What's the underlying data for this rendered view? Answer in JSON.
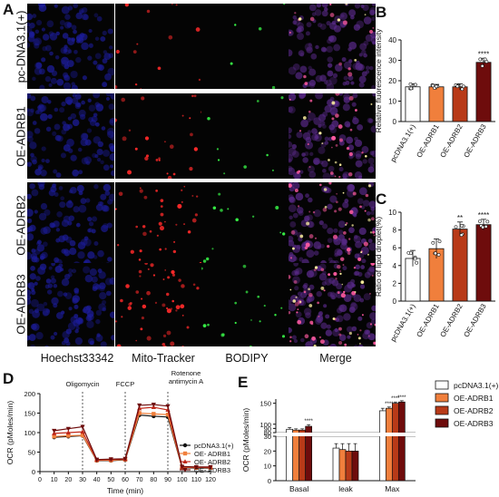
{
  "panels": {
    "A": {
      "label": "A",
      "rows": [
        "pc-DNA3.1(+)",
        "OE-ADRB1",
        "OE-ADRB2",
        "OE-ADRB3"
      ],
      "columns": [
        "Hoechst33342",
        "Mito-Tracker",
        "BODIPY",
        "Merge"
      ],
      "channel_colors": [
        "#2a2ad8",
        "#e0202a",
        "#30d040",
        "#d04aa0"
      ]
    },
    "B": {
      "label": "B"
    },
    "C": {
      "label": "C"
    },
    "D": {
      "label": "D"
    },
    "E": {
      "label": "E"
    }
  },
  "legend_E": {
    "entries": [
      "pcDNA3.1(+)",
      "OE-ADRB1",
      "OE-ADRB2",
      "OE-ADRB3"
    ],
    "colors": [
      "#ffffff",
      "#f07f3c",
      "#b83a18",
      "#6e0c0c"
    ]
  },
  "chart_data": [
    {
      "id": "B",
      "type": "bar",
      "categories": [
        "pcDNA3.1(+)",
        "OE-ADRB1",
        "OE-ADRB2",
        "OE-ADRB3"
      ],
      "values": [
        17,
        17,
        17,
        29
      ],
      "errors": [
        1.5,
        1.2,
        1.5,
        2
      ],
      "significance": [
        "",
        "",
        "",
        "****"
      ],
      "colors": [
        "#ffffff",
        "#f07f3c",
        "#b83a18",
        "#6e0c0c"
      ],
      "ylabel": "Relative fluorescence intensity",
      "ylim": [
        0,
        40
      ],
      "yticks": [
        0,
        10,
        20,
        30,
        40
      ]
    },
    {
      "id": "C",
      "type": "bar",
      "categories": [
        "pcDNA3.1(+)",
        "OE-ADRB1",
        "OE-ADRB2",
        "OE-ADRB3"
      ],
      "values": [
        4.8,
        5.9,
        8.1,
        8.6
      ],
      "errors": [
        0.9,
        1.1,
        0.8,
        0.6
      ],
      "significance": [
        "",
        "",
        "**",
        "****"
      ],
      "colors": [
        "#ffffff",
        "#f07f3c",
        "#b83a18",
        "#6e0c0c"
      ],
      "ylabel": "Ratio of lipid droplet(%)",
      "ylim": [
        0,
        10
      ],
      "yticks": [
        0,
        2,
        4,
        6,
        8,
        10
      ]
    },
    {
      "id": "D",
      "type": "line",
      "xlabel": "Time (min)",
      "ylabel": "OCR (pMoles/min)",
      "xlim": [
        0,
        120
      ],
      "ylim": [
        0,
        200
      ],
      "xticks": [
        0,
        10,
        20,
        30,
        40,
        50,
        60,
        70,
        80,
        90,
        100,
        110,
        120
      ],
      "yticks": [
        0,
        50,
        100,
        150,
        200
      ],
      "x": [
        10,
        20,
        30,
        40,
        50,
        60,
        70,
        80,
        90,
        100,
        110,
        120
      ],
      "annotations": [
        {
          "x": 30,
          "text": [
            "Oligomycin"
          ]
        },
        {
          "x": 60,
          "text": [
            "FCCP"
          ]
        },
        {
          "x": 90,
          "text": [
            "Rotenone",
            "antimycin A"
          ]
        }
      ],
      "series": [
        {
          "name": "pcDNA3.1(+)",
          "color": "#111111",
          "values": [
            88,
            90,
            92,
            28,
            28,
            30,
            145,
            142,
            140,
            10,
            9,
            9
          ]
        },
        {
          "name": "OE- ADRB1",
          "color": "#f07f3c",
          "values": [
            90,
            92,
            93,
            29,
            29,
            31,
            150,
            148,
            146,
            11,
            10,
            10
          ]
        },
        {
          "name": "OE- ADRB2",
          "color": "#c0281a",
          "values": [
            98,
            100,
            102,
            30,
            31,
            32,
            162,
            165,
            158,
            12,
            11,
            11
          ]
        },
        {
          "name": "OE- ADRB3",
          "color": "#6e0c0c",
          "values": [
            105,
            110,
            115,
            31,
            32,
            33,
            170,
            172,
            168,
            13,
            12,
            12
          ]
        }
      ]
    },
    {
      "id": "E",
      "type": "bar",
      "categories": [
        "Basal",
        "leak",
        "Max"
      ],
      "series": [
        {
          "name": "pcDNA3.1(+)",
          "color": "#ffffff",
          "values": [
            88,
            22,
            132
          ]
        },
        {
          "name": "OE-ADRB1",
          "color": "#f07f3c",
          "values": [
            86,
            21,
            138
          ]
        },
        {
          "name": "OE-ADRB2",
          "color": "#b83a18",
          "values": [
            86,
            20,
            150
          ]
        },
        {
          "name": "OE-ADRB3",
          "color": "#6e0c0c",
          "values": [
            95,
            20,
            153
          ]
        }
      ],
      "errors": [
        [
          4,
          3,
          6
        ],
        [
          3,
          4,
          3
        ],
        [
          3,
          5,
          3
        ],
        [
          4,
          5,
          3
        ]
      ],
      "significance": [
        [
          "",
          "",
          ""
        ],
        [
          "",
          "",
          "****"
        ],
        [
          "",
          "",
          "****"
        ],
        [
          "****",
          "",
          "****"
        ]
      ],
      "ylabel": "OCR (pMoles/min)",
      "axis_break": [
        30,
        80
      ],
      "yticks_lower": [
        0,
        10,
        20,
        30
      ],
      "yticks_upper": [
        80,
        90,
        100,
        150
      ],
      "ylim": [
        0,
        160
      ]
    }
  ]
}
